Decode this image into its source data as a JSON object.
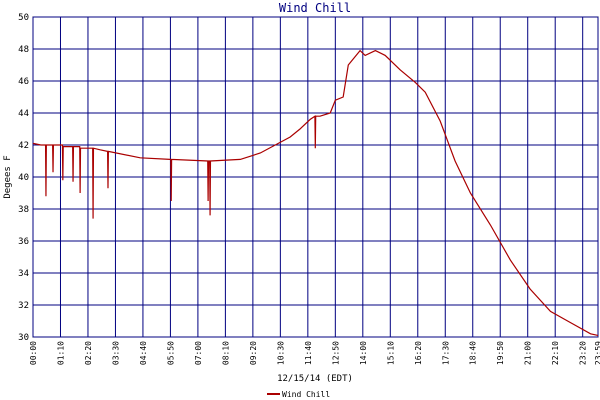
{
  "chart_data": {
    "type": "line",
    "title": "Wind Chill",
    "xlabel": "12/15/14 (EDT)",
    "ylabel": "Degees F",
    "xlim": [
      0,
      1439
    ],
    "ylim": [
      30,
      50
    ],
    "xticks": [
      {
        "value": 0,
        "label": "00:00"
      },
      {
        "value": 70,
        "label": "01:10"
      },
      {
        "value": 140,
        "label": "02:20"
      },
      {
        "value": 210,
        "label": "03:30"
      },
      {
        "value": 280,
        "label": "04:40"
      },
      {
        "value": 350,
        "label": "05:50"
      },
      {
        "value": 420,
        "label": "07:00"
      },
      {
        "value": 490,
        "label": "08:10"
      },
      {
        "value": 560,
        "label": "09:20"
      },
      {
        "value": 630,
        "label": "10:30"
      },
      {
        "value": 700,
        "label": "11:40"
      },
      {
        "value": 770,
        "label": "12:50"
      },
      {
        "value": 840,
        "label": "14:00"
      },
      {
        "value": 910,
        "label": "15:10"
      },
      {
        "value": 980,
        "label": "16:20"
      },
      {
        "value": 1050,
        "label": "17:30"
      },
      {
        "value": 1120,
        "label": "18:40"
      },
      {
        "value": 1190,
        "label": "19:50"
      },
      {
        "value": 1260,
        "label": "21:00"
      },
      {
        "value": 1330,
        "label": "22:10"
      },
      {
        "value": 1400,
        "label": "23:20"
      },
      {
        "value": 1439,
        "label": "23:59"
      }
    ],
    "yticks": [
      30,
      32,
      34,
      36,
      38,
      40,
      42,
      44,
      46,
      48,
      50
    ],
    "grid": true,
    "series": [
      {
        "name": "Wind Chill",
        "color": "#aa0000",
        "x": [
          0,
          20,
          32,
          33,
          34,
          50,
          51,
          52,
          75,
          76,
          77,
          101,
          102,
          103,
          119,
          120,
          121,
          152,
          153,
          154,
          171,
          190,
          191,
          192,
          273,
          349,
          351,
          352,
          353,
          445,
          446,
          447,
          450,
          451,
          452,
          528,
          579,
          655,
          680,
          706,
          718,
          719,
          720,
          731,
          757,
          770,
          790,
          803,
          833,
          846,
          872,
          897,
          935,
          974,
          999,
          1037,
          1075,
          1114,
          1165,
          1216,
          1266,
          1318,
          1369,
          1420,
          1439
        ],
        "values": [
          42.1,
          42.0,
          42.0,
          38.8,
          42.0,
          42.0,
          40.3,
          42.0,
          42.0,
          39.8,
          41.9,
          41.9,
          39.7,
          41.9,
          41.9,
          39.0,
          41.8,
          41.8,
          37.4,
          41.8,
          41.7,
          41.6,
          39.3,
          41.6,
          41.2,
          41.1,
          41.1,
          38.5,
          41.1,
          41.0,
          38.5,
          41.0,
          41.0,
          37.6,
          41.0,
          41.1,
          41.5,
          42.5,
          43.0,
          43.6,
          43.8,
          41.8,
          43.8,
          43.8,
          44.0,
          44.8,
          45.0,
          47.0,
          47.9,
          47.6,
          47.9,
          47.6,
          46.7,
          45.9,
          45.3,
          43.5,
          41.0,
          39.0,
          37.0,
          34.8,
          33.0,
          31.6,
          30.9,
          30.2,
          30.1
        ]
      }
    ]
  }
}
